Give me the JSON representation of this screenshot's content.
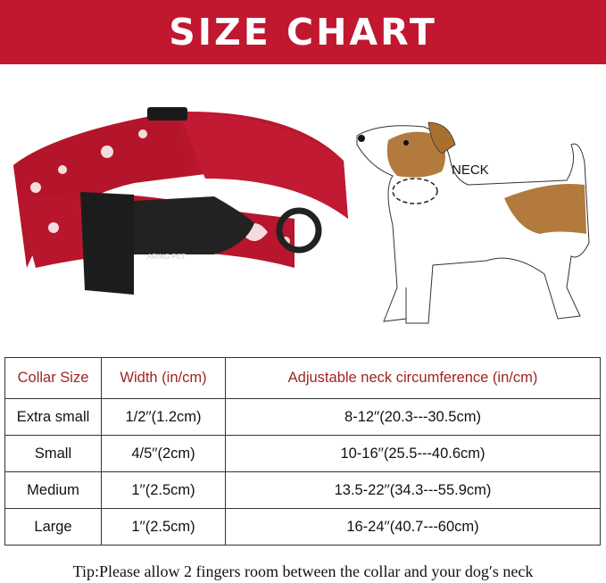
{
  "header": {
    "title": "SIZE CHART"
  },
  "colors": {
    "banner": "#c1172f",
    "header_text": "#a02424",
    "dog_patch": "#b27a3c"
  },
  "product": {
    "brand_text": "ARING PET"
  },
  "diagram": {
    "neck_label": "NECK"
  },
  "table": {
    "headers": [
      "Collar Size",
      "Width (in/cm)",
      "Adjustable neck circumference (in/cm)"
    ],
    "rows": [
      [
        "Extra small",
        "1/2′′(1.2cm)",
        "8-12′′(20.3---30.5cm)"
      ],
      [
        "Small",
        "4/5′′(2cm)",
        "10-16′′(25.5---40.6cm)"
      ],
      [
        "Medium",
        "1′′(2.5cm)",
        "13.5-22′′(34.3---55.9cm)"
      ],
      [
        "Large",
        "1′′(2.5cm)",
        "16-24′′(40.7---60cm)"
      ]
    ]
  },
  "tip": "Tip:Please allow 2 fingers room between the collar and your dog′s neck"
}
